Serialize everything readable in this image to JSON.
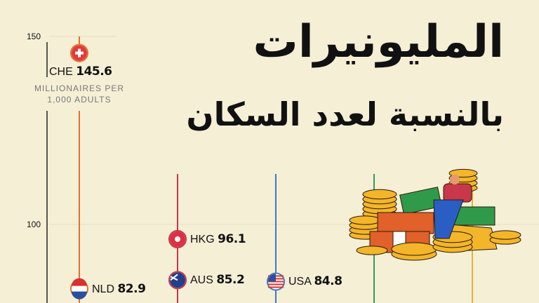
{
  "header": {
    "title": "المليونيرات",
    "subtitle": "بالنسبة لعدد السكان"
  },
  "chart_data": {
    "type": "scatter",
    "title": "المليونيرات بالنسبة لعدد السكان",
    "unit_label": "MILLIONAIRES PER 1,000 ADULTS",
    "yticks": [
      "150",
      "100"
    ],
    "ylim": [
      75,
      150
    ],
    "points": [
      {
        "code": "CHE",
        "value": 145.6,
        "value_label": "145.6",
        "flag": "switzerland-flag",
        "line_color": "#e0702c"
      },
      {
        "code": "NLD",
        "value": 82.9,
        "value_label": "82.9",
        "flag": "netherlands-flag",
        "line_color": "#e0702c"
      },
      {
        "code": "HKG",
        "value": 96.1,
        "value_label": "96.1",
        "flag": "hong-kong-flag",
        "line_color": "#c8374a"
      },
      {
        "code": "AUS",
        "value": 85.2,
        "value_label": "85.2",
        "flag": "australia-flag",
        "line_color": "#c8374a"
      },
      {
        "code": "USA",
        "value": 84.8,
        "value_label": "84.8",
        "flag": "usa-flag",
        "line_color": "#3b7cc4"
      }
    ],
    "extra_line_colors": [
      "#3a9a5a",
      "#e2b23a"
    ]
  }
}
